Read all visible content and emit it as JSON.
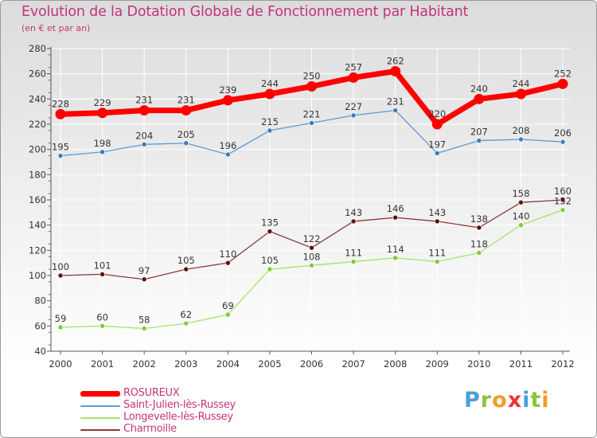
{
  "title": "Evolution de la Dotation Globale de Fonctionnement par Habitant",
  "subtitle": "(en € et par an)",
  "colors": {
    "title": "#c3347a",
    "grid": "#ffffff",
    "axis": "#555555",
    "tick_mark": "#c3347a"
  },
  "brand": {
    "text": "Proxiti",
    "letters": [
      {
        "ch": "P",
        "color": "#4b9fd8"
      },
      {
        "ch": "r",
        "color": "#8bc53f"
      },
      {
        "ch": "o",
        "color": "#f39c24"
      },
      {
        "ch": "x",
        "color": "#e6353a"
      },
      {
        "ch": "i",
        "color": "#4b9fd8"
      },
      {
        "ch": "t",
        "color": "#8bc53f"
      },
      {
        "ch": "i",
        "color": "#f39c24"
      }
    ]
  },
  "chart_data": {
    "type": "line",
    "title": "Evolution de la Dotation Globale de Fonctionnement par Habitant",
    "subtitle": "(en € et par an)",
    "xlabel": "",
    "ylabel": "",
    "categories": [
      "2000",
      "2001",
      "2002",
      "2003",
      "2004",
      "2005",
      "2006",
      "2007",
      "2008",
      "2009",
      "2010",
      "2011",
      "2012"
    ],
    "ylim": [
      40,
      280
    ],
    "yticks": [
      40,
      60,
      80,
      100,
      120,
      140,
      160,
      180,
      200,
      220,
      240,
      260,
      280
    ],
    "grid": true,
    "legend_position": "bottom-left",
    "series": [
      {
        "name": "ROSUREUX",
        "color": "#ff0000",
        "marker_color": "#ff0000",
        "thick": true,
        "values": [
          228,
          229,
          231,
          231,
          239,
          244,
          250,
          257,
          262,
          220,
          240,
          244,
          252
        ]
      },
      {
        "name": "Saint-Julien-lès-Russey",
        "color": "#5b9bd5",
        "marker_color": "#3a7cc0",
        "thick": false,
        "values": [
          195,
          198,
          204,
          205,
          196,
          215,
          221,
          227,
          231,
          197,
          207,
          208,
          206
        ]
      },
      {
        "name": "Longevelle-lès-Russey",
        "color": "#a6e36b",
        "marker_color": "#7dcc3a",
        "thick": false,
        "values": [
          59,
          60,
          58,
          62,
          69,
          105,
          108,
          111,
          114,
          111,
          118,
          140,
          152
        ]
      },
      {
        "name": "Charmoille",
        "color": "#8b3a3a",
        "marker_color": "#5e1010",
        "thick": false,
        "values": [
          100,
          101,
          97,
          105,
          110,
          135,
          122,
          143,
          146,
          143,
          138,
          158,
          160
        ]
      }
    ]
  }
}
